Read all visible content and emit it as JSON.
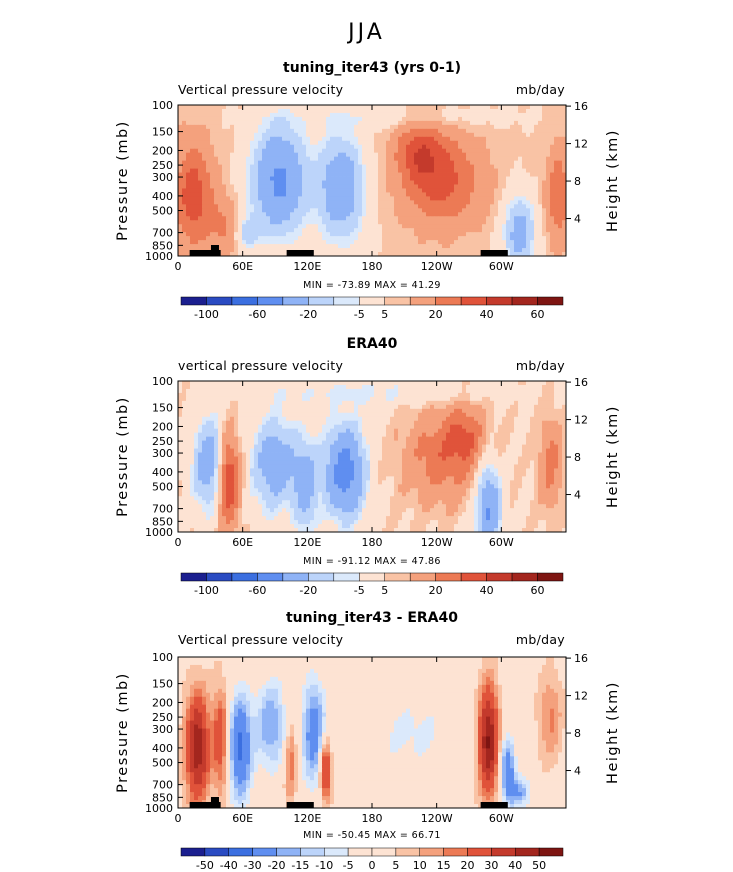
{
  "title": "JJA",
  "colors": {
    "ramp": [
      "#1b1f8f",
      "#2a4bc2",
      "#3b6fe0",
      "#5f8ef0",
      "#8fb3f6",
      "#bcd4fa",
      "#dbe9fb",
      "#fde3d3",
      "#f9c3a5",
      "#f4a17d",
      "#ec7a55",
      "#e0533a",
      "#c43a2c",
      "#a3261e",
      "#7e1512"
    ]
  },
  "chart_data": [
    {
      "type": "heatmap",
      "title": "tuning_iter43 (yrs 0-1)",
      "left_text": "Vertical pressure velocity",
      "right_text": "mb/day",
      "ylabel": "Pressure (mb)",
      "ylabel_right": "Height (km)",
      "pressure_ticks": [
        "100",
        "150",
        "200",
        "250",
        "300",
        "400",
        "500",
        "700",
        "850",
        "1000"
      ],
      "height_ticks": [
        "16",
        "12",
        "8",
        "4"
      ],
      "x_ticks": [
        "0",
        "60E",
        "120E",
        "180",
        "120W",
        "60W"
      ],
      "min_max": "MIN = -73.89   MAX =  41.29",
      "colorbar_levels": [
        -100,
        -80,
        -60,
        -40,
        -20,
        -10,
        -5,
        5,
        10,
        20,
        30,
        40,
        50,
        60
      ],
      "colorbar_labels": [
        "-100",
        "-60",
        "-20",
        "-5",
        "5",
        "20",
        "40",
        "60"
      ],
      "x_range": [
        0,
        360
      ],
      "pressure_range": [
        1000,
        100
      ]
    },
    {
      "type": "heatmap",
      "title": "ERA40",
      "left_text": "vertical pressure velocity",
      "right_text": "mb/day",
      "ylabel": "Pressure (mb)",
      "ylabel_right": "Height (km)",
      "pressure_ticks": [
        "100",
        "150",
        "200",
        "250",
        "300",
        "400",
        "500",
        "700",
        "850",
        "1000"
      ],
      "height_ticks": [
        "16",
        "12",
        "8",
        "4"
      ],
      "x_ticks": [
        "0",
        "60E",
        "120E",
        "180",
        "120W",
        "60W"
      ],
      "min_max": "MIN = -91.12   MAX =  47.86",
      "colorbar_levels": [
        -100,
        -80,
        -60,
        -40,
        -20,
        -10,
        -5,
        5,
        10,
        20,
        30,
        40,
        50,
        60
      ],
      "colorbar_labels": [
        "-100",
        "-60",
        "-20",
        "-5",
        "5",
        "20",
        "40",
        "60"
      ],
      "x_range": [
        0,
        360
      ],
      "pressure_range": [
        1000,
        100
      ]
    },
    {
      "type": "heatmap",
      "title": "tuning_iter43 - ERA40",
      "left_text": "Vertical pressure velocity",
      "right_text": "mb/day",
      "ylabel": "Pressure (mb)",
      "ylabel_right": "Height (km)",
      "pressure_ticks": [
        "100",
        "150",
        "200",
        "250",
        "300",
        "400",
        "500",
        "700",
        "850",
        "1000"
      ],
      "height_ticks": [
        "16",
        "12",
        "8",
        "4"
      ],
      "x_ticks": [
        "0",
        "60E",
        "120E",
        "180",
        "120W",
        "60W"
      ],
      "min_max": "MIN = -50.45   MAX =  66.71",
      "colorbar_levels": [
        -50,
        -40,
        -30,
        -20,
        -15,
        -10,
        -5,
        0,
        5,
        10,
        15,
        20,
        30,
        40,
        50
      ],
      "colorbar_labels": [
        "-50",
        "-40",
        "-30",
        "-20",
        "-15",
        "-10",
        "-5",
        "0",
        "5",
        "10",
        "15",
        "20",
        "30",
        "40",
        "50"
      ],
      "x_range": [
        0,
        360
      ],
      "pressure_range": [
        1000,
        100
      ]
    }
  ]
}
